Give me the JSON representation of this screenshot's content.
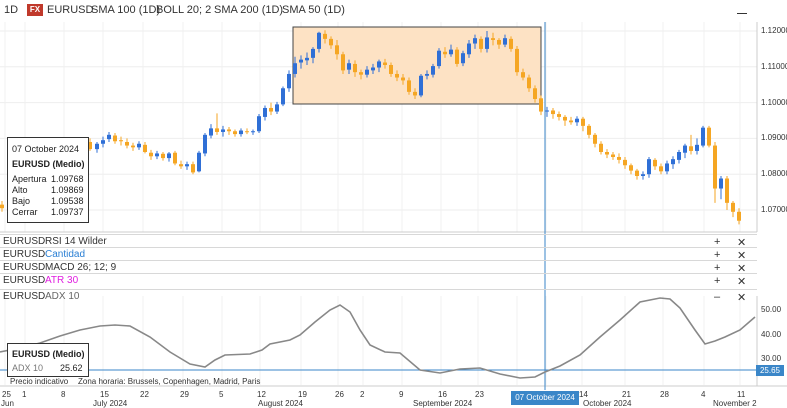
{
  "header": {
    "timeframe": "1D",
    "symbol_badge": "FX",
    "symbol": "EURUSD",
    "ind1": "SMA 100 (1D)",
    "ind2": "BOLL 20; 2",
    "ind3": "SMA 200 (1D)",
    "ind4": "SMA 50 (1D)"
  },
  "price_axis": [
    "1.12000",
    "1.11000",
    "1.10000",
    "1.09000",
    "1.08000",
    "1.07000"
  ],
  "info_box": {
    "date": "07 October 2024",
    "title": "EURUSD (Medio)",
    "open_label": "Apertura",
    "open": "1.09768",
    "high_label": "Alto",
    "high": "1.09869",
    "low_label": "Bajo",
    "low": "1.09538",
    "close_label": "Cerrar",
    "close": "1.09737"
  },
  "panels": [
    {
      "symbol": "EURUSD",
      "name": "RSI 14 Wilder",
      "color": "#333333"
    },
    {
      "symbol": "EURUSD",
      "name": "Cantidad",
      "color": "#2a7fd4"
    },
    {
      "symbol": "EURUSD",
      "name": "MACD 26; 12; 9",
      "color": "#333333"
    },
    {
      "symbol": "EURUSD",
      "name": "ATR 30",
      "color": "#e01ee0"
    }
  ],
  "adx": {
    "symbol": "EURUSD",
    "name": "ADX 10",
    "box_title": "EURUSD (Medio)",
    "label": "ADX 10",
    "value": "25.62",
    "axis": [
      "50.00",
      "40.00",
      "30.00"
    ],
    "tag": "25.65"
  },
  "footer": {
    "note": "Precio indicativo",
    "tz": "Zona horaria: Brussels, Copenhagen, Madrid, Paris"
  },
  "x_days": [
    "25",
    "1",
    "8",
    "15",
    "22",
    "29",
    "5",
    "12",
    "19",
    "26",
    "2",
    "9",
    "16",
    "23",
    "30",
    "7",
    "14",
    "21",
    "28",
    "4",
    "11"
  ],
  "x_months": [
    "Jun",
    "July 2024",
    "August 2024",
    "September 2024",
    "October 2024",
    "November 2"
  ],
  "x_date_tag": "07 October 2024",
  "colors": {
    "up": "#2f6fd6",
    "down": "#f5a623",
    "crosshair": "#3a86c8",
    "highlight": "#fde2c4"
  }
}
